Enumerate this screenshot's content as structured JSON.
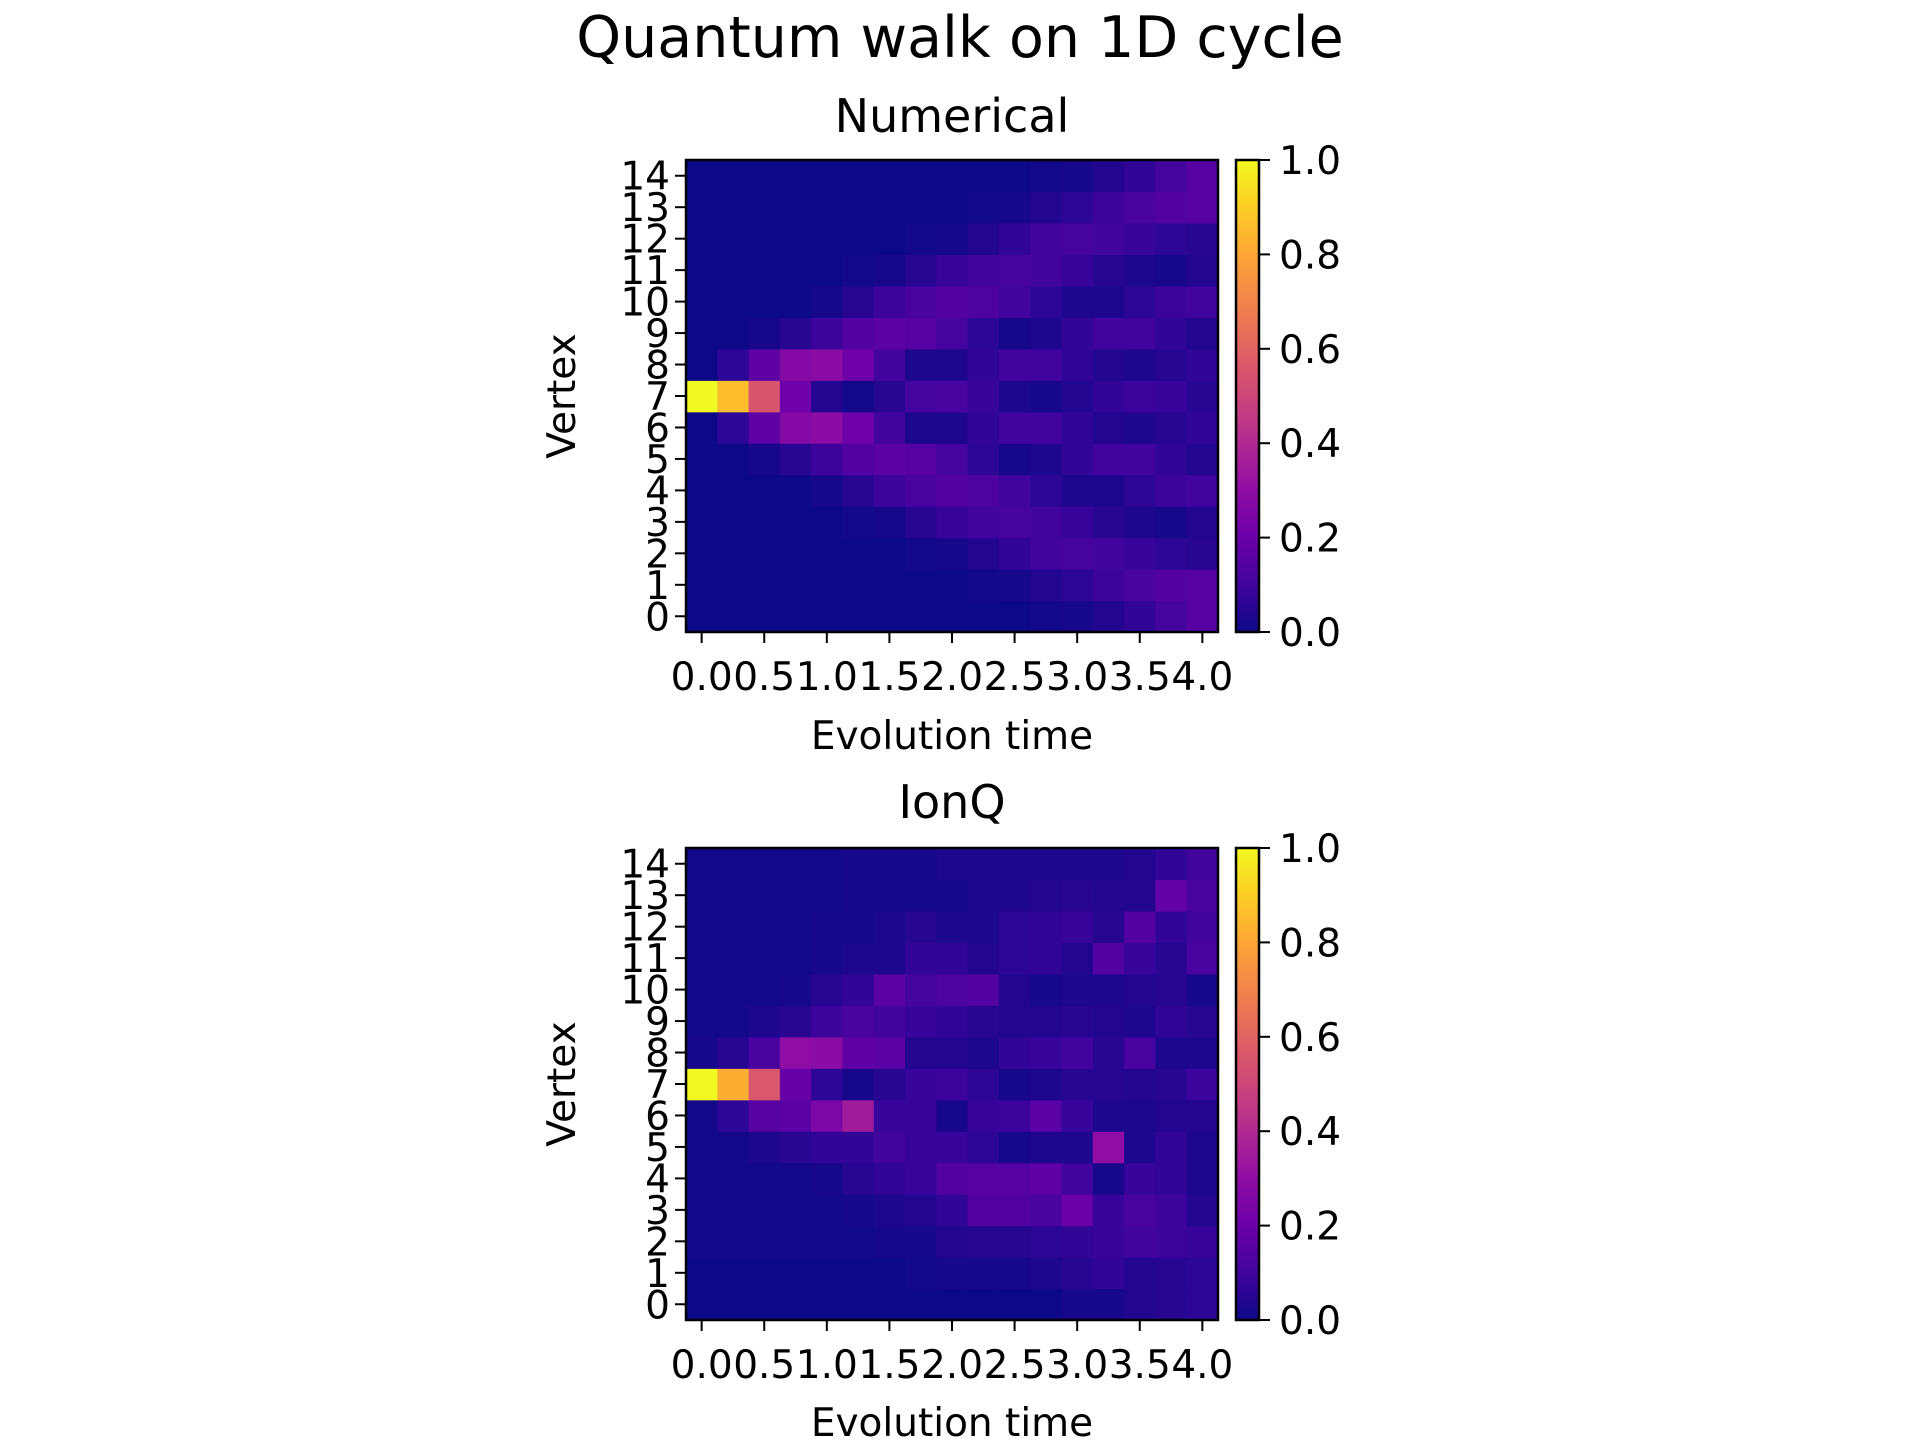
{
  "suptitle": "Quantum walk on 1D cycle",
  "colormap": "plasma",
  "chart_data": [
    {
      "type": "heatmap",
      "title": "Numerical",
      "xlabel": "Evolution time",
      "ylabel": "Vertex",
      "x_tick_values": [
        0.0,
        0.5,
        1.0,
        1.5,
        2.0,
        2.5,
        3.0,
        3.5,
        4.0
      ],
      "x_tick_labels": [
        "0.0",
        "0.5",
        "1.0",
        "1.5",
        "2.0",
        "2.5",
        "3.0",
        "3.5",
        "4.0"
      ],
      "y_tick_labels": [
        "0",
        "1",
        "2",
        "3",
        "4",
        "5",
        "6",
        "7",
        "8",
        "9",
        "10",
        "11",
        "12",
        "13",
        "14"
      ],
      "x_cell_centers": [
        0.0,
        0.25,
        0.5,
        0.75,
        1.0,
        1.25,
        1.5,
        1.75,
        2.0,
        2.25,
        2.5,
        2.75,
        3.0,
        3.25,
        3.5,
        3.75,
        4.0
      ],
      "xlim": [
        -0.125,
        4.125
      ],
      "ylim": [
        -0.5,
        14.5
      ],
      "colorbar": {
        "vmin": 0.0,
        "vmax": 1.0,
        "ticks": [
          "0.0",
          "0.2",
          "0.4",
          "0.6",
          "0.8",
          "1.0"
        ]
      },
      "rows_by_vertex": [
        [
          0.0,
          0.0,
          0.0,
          0.0,
          0.0,
          0.0,
          0.0,
          0.0,
          0.0,
          0.0,
          0.0,
          0.01,
          0.02,
          0.04,
          0.07,
          0.11,
          0.15
        ],
        [
          0.0,
          0.0,
          0.0,
          0.0,
          0.0,
          0.0,
          0.0,
          0.0,
          0.0,
          0.01,
          0.02,
          0.04,
          0.06,
          0.09,
          0.12,
          0.14,
          0.15
        ],
        [
          0.0,
          0.0,
          0.0,
          0.0,
          0.0,
          0.0,
          0.0,
          0.01,
          0.02,
          0.04,
          0.07,
          0.1,
          0.11,
          0.1,
          0.08,
          0.06,
          0.05
        ],
        [
          0.0,
          0.0,
          0.0,
          0.0,
          0.0,
          0.01,
          0.02,
          0.05,
          0.08,
          0.1,
          0.11,
          0.1,
          0.08,
          0.05,
          0.03,
          0.02,
          0.04
        ],
        [
          0.0,
          0.0,
          0.0,
          0.0,
          0.02,
          0.05,
          0.09,
          0.12,
          0.14,
          0.13,
          0.1,
          0.06,
          0.03,
          0.03,
          0.06,
          0.09,
          0.1
        ],
        [
          0.0,
          0.0,
          0.02,
          0.05,
          0.09,
          0.14,
          0.16,
          0.15,
          0.11,
          0.06,
          0.02,
          0.03,
          0.07,
          0.1,
          0.1,
          0.07,
          0.04
        ],
        [
          0.0,
          0.06,
          0.17,
          0.27,
          0.29,
          0.21,
          0.1,
          0.03,
          0.03,
          0.07,
          0.1,
          0.1,
          0.07,
          0.04,
          0.03,
          0.05,
          0.07
        ],
        [
          1.0,
          0.86,
          0.55,
          0.21,
          0.04,
          0.01,
          0.05,
          0.11,
          0.12,
          0.08,
          0.03,
          0.02,
          0.04,
          0.07,
          0.09,
          0.08,
          0.05
        ],
        [
          0.0,
          0.06,
          0.17,
          0.27,
          0.29,
          0.21,
          0.1,
          0.03,
          0.03,
          0.07,
          0.1,
          0.1,
          0.07,
          0.04,
          0.03,
          0.05,
          0.07
        ],
        [
          0.0,
          0.0,
          0.02,
          0.05,
          0.09,
          0.14,
          0.16,
          0.15,
          0.11,
          0.06,
          0.02,
          0.03,
          0.07,
          0.1,
          0.1,
          0.07,
          0.04
        ],
        [
          0.0,
          0.0,
          0.0,
          0.0,
          0.02,
          0.05,
          0.09,
          0.12,
          0.14,
          0.13,
          0.1,
          0.06,
          0.03,
          0.03,
          0.06,
          0.09,
          0.1
        ],
        [
          0.0,
          0.0,
          0.0,
          0.0,
          0.0,
          0.01,
          0.02,
          0.05,
          0.08,
          0.1,
          0.11,
          0.1,
          0.08,
          0.05,
          0.03,
          0.02,
          0.04
        ],
        [
          0.0,
          0.0,
          0.0,
          0.0,
          0.0,
          0.0,
          0.0,
          0.01,
          0.02,
          0.04,
          0.07,
          0.1,
          0.11,
          0.1,
          0.08,
          0.06,
          0.05
        ],
        [
          0.0,
          0.0,
          0.0,
          0.0,
          0.0,
          0.0,
          0.0,
          0.0,
          0.0,
          0.01,
          0.02,
          0.04,
          0.06,
          0.09,
          0.12,
          0.14,
          0.15
        ],
        [
          0.0,
          0.0,
          0.0,
          0.0,
          0.0,
          0.0,
          0.0,
          0.0,
          0.0,
          0.0,
          0.0,
          0.01,
          0.02,
          0.04,
          0.07,
          0.11,
          0.15
        ]
      ]
    },
    {
      "type": "heatmap",
      "title": "IonQ",
      "xlabel": "Evolution time",
      "ylabel": "Vertex",
      "x_tick_values": [
        0.0,
        0.5,
        1.0,
        1.5,
        2.0,
        2.5,
        3.0,
        3.5,
        4.0
      ],
      "x_tick_labels": [
        "0.0",
        "0.5",
        "1.0",
        "1.5",
        "2.0",
        "2.5",
        "3.0",
        "3.5",
        "4.0"
      ],
      "y_tick_labels": [
        "0",
        "1",
        "2",
        "3",
        "4",
        "5",
        "6",
        "7",
        "8",
        "9",
        "10",
        "11",
        "12",
        "13",
        "14"
      ],
      "x_cell_centers": [
        0.0,
        0.25,
        0.5,
        0.75,
        1.0,
        1.25,
        1.5,
        1.75,
        2.0,
        2.25,
        2.5,
        2.75,
        3.0,
        3.25,
        3.5,
        3.75,
        4.0
      ],
      "xlim": [
        -0.125,
        4.125
      ],
      "ylim": [
        -0.5,
        14.5
      ],
      "colorbar": {
        "vmin": 0.0,
        "vmax": 1.0,
        "ticks": [
          "0.0",
          "0.2",
          "0.4",
          "0.6",
          "0.8",
          "1.0"
        ]
      },
      "rows_by_vertex": [
        [
          0.0,
          0.0,
          0.0,
          0.0,
          0.0,
          0.0,
          0.0,
          0.0,
          0.0,
          0.0,
          0.0,
          0.0,
          0.02,
          0.02,
          0.04,
          0.05,
          0.06
        ],
        [
          0.0,
          0.0,
          0.0,
          0.0,
          0.0,
          0.0,
          0.0,
          0.01,
          0.02,
          0.02,
          0.02,
          0.03,
          0.05,
          0.07,
          0.04,
          0.05,
          0.06
        ],
        [
          0.01,
          0.01,
          0.01,
          0.01,
          0.01,
          0.01,
          0.02,
          0.02,
          0.04,
          0.05,
          0.05,
          0.06,
          0.07,
          0.08,
          0.1,
          0.09,
          0.08
        ],
        [
          0.01,
          0.01,
          0.01,
          0.01,
          0.01,
          0.02,
          0.03,
          0.04,
          0.07,
          0.14,
          0.14,
          0.12,
          0.2,
          0.08,
          0.12,
          0.09,
          0.04
        ],
        [
          0.01,
          0.01,
          0.01,
          0.01,
          0.02,
          0.05,
          0.07,
          0.08,
          0.14,
          0.15,
          0.15,
          0.17,
          0.1,
          0.02,
          0.08,
          0.07,
          0.03
        ],
        [
          0.01,
          0.01,
          0.03,
          0.05,
          0.07,
          0.07,
          0.1,
          0.08,
          0.08,
          0.06,
          0.02,
          0.03,
          0.03,
          0.3,
          0.03,
          0.07,
          0.03
        ],
        [
          0.01,
          0.06,
          0.15,
          0.16,
          0.25,
          0.35,
          0.08,
          0.08,
          0.02,
          0.08,
          0.09,
          0.16,
          0.08,
          0.03,
          0.03,
          0.04,
          0.04
        ],
        [
          1.0,
          0.82,
          0.56,
          0.19,
          0.06,
          0.02,
          0.05,
          0.08,
          0.09,
          0.06,
          0.02,
          0.03,
          0.05,
          0.05,
          0.04,
          0.05,
          0.09
        ],
        [
          0.02,
          0.05,
          0.12,
          0.3,
          0.29,
          0.17,
          0.16,
          0.04,
          0.04,
          0.03,
          0.07,
          0.08,
          0.1,
          0.05,
          0.12,
          0.03,
          0.03
        ],
        [
          0.01,
          0.01,
          0.03,
          0.05,
          0.09,
          0.12,
          0.1,
          0.08,
          0.07,
          0.05,
          0.04,
          0.04,
          0.05,
          0.04,
          0.03,
          0.07,
          0.05
        ],
        [
          0.01,
          0.01,
          0.01,
          0.02,
          0.05,
          0.07,
          0.16,
          0.11,
          0.13,
          0.14,
          0.04,
          0.02,
          0.03,
          0.03,
          0.04,
          0.05,
          0.02
        ],
        [
          0.01,
          0.01,
          0.01,
          0.01,
          0.02,
          0.03,
          0.03,
          0.07,
          0.07,
          0.04,
          0.06,
          0.07,
          0.04,
          0.14,
          0.08,
          0.05,
          0.12
        ],
        [
          0.01,
          0.01,
          0.01,
          0.01,
          0.02,
          0.02,
          0.03,
          0.05,
          0.03,
          0.03,
          0.06,
          0.07,
          0.08,
          0.05,
          0.14,
          0.07,
          0.1
        ],
        [
          0.01,
          0.01,
          0.01,
          0.01,
          0.01,
          0.02,
          0.02,
          0.02,
          0.02,
          0.03,
          0.03,
          0.04,
          0.05,
          0.04,
          0.04,
          0.18,
          0.12
        ],
        [
          0.01,
          0.01,
          0.01,
          0.01,
          0.01,
          0.02,
          0.02,
          0.02,
          0.03,
          0.03,
          0.03,
          0.03,
          0.03,
          0.03,
          0.04,
          0.07,
          0.1
        ]
      ]
    }
  ]
}
